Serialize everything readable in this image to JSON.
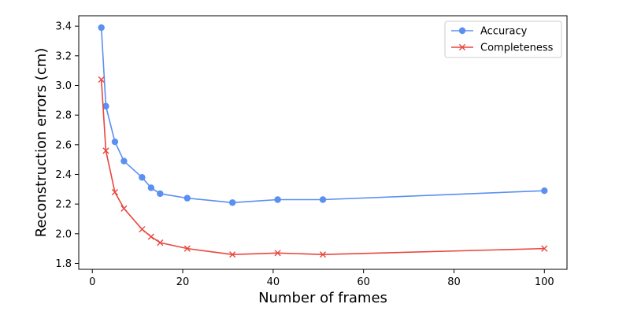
{
  "chart_data": {
    "type": "line",
    "title": "",
    "xlabel": "Number of frames",
    "ylabel": "Reconstruction errors (cm)",
    "xlim": [
      -3,
      105
    ],
    "ylim": [
      1.76,
      3.47
    ],
    "xticks": [
      0,
      20,
      40,
      60,
      80,
      100
    ],
    "yticks": [
      1.8,
      2.0,
      2.2,
      2.4,
      2.6,
      2.8,
      3.0,
      3.2,
      3.4
    ],
    "grid": false,
    "legend_position": "top-right",
    "x": [
      2,
      3,
      5,
      7,
      11,
      13,
      15,
      21,
      31,
      41,
      51,
      100
    ],
    "series": [
      {
        "name": "Accuracy",
        "color": "#5b8ff0",
        "marker": "circle",
        "values": [
          3.39,
          2.86,
          2.62,
          2.49,
          2.38,
          2.31,
          2.27,
          2.24,
          2.21,
          2.23,
          2.23,
          2.29
        ]
      },
      {
        "name": "Completeness",
        "color": "#e8473f",
        "marker": "x",
        "values": [
          3.04,
          2.56,
          2.28,
          2.17,
          2.03,
          1.98,
          1.94,
          1.9,
          1.86,
          1.87,
          1.86,
          1.9
        ]
      }
    ]
  }
}
